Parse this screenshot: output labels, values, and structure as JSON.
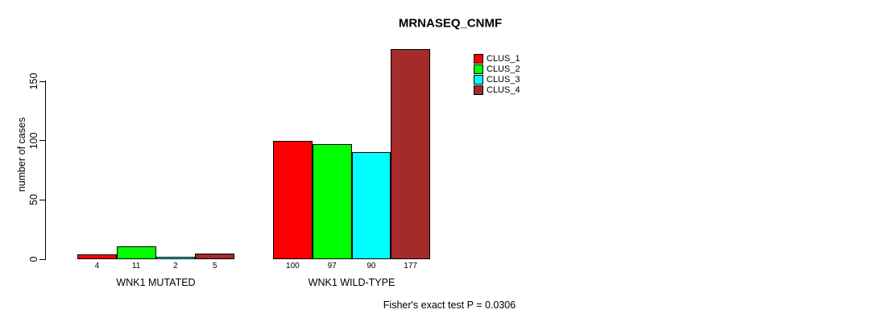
{
  "chart_data": {
    "type": "bar",
    "title": "MRNASEQ_CNMF",
    "ylabel": "number of cases",
    "xlabel": "",
    "annotation": "Fisher's exact test P = 0.0306",
    "categories": [
      "WNK1 MUTATED",
      "WNK1 WILD-TYPE"
    ],
    "series": [
      {
        "name": "CLUS_1",
        "color": "#ff0000",
        "values": [
          4,
          100
        ]
      },
      {
        "name": "CLUS_2",
        "color": "#00ff00",
        "values": [
          11,
          97
        ]
      },
      {
        "name": "CLUS_3",
        "color": "#00ffff",
        "values": [
          2,
          90
        ]
      },
      {
        "name": "CLUS_4",
        "color": "#a52a2a",
        "values": [
          5,
          177
        ]
      }
    ],
    "bar_value_labels": [
      [
        "4",
        "11",
        "2",
        "5"
      ],
      [
        "100",
        "97",
        "90",
        "177"
      ]
    ],
    "yticks": [
      0,
      50,
      100,
      150
    ],
    "ylim": [
      0,
      183
    ],
    "grid": false,
    "legend_position": "top-right",
    "background": "#ffffff",
    "bar_border_color": "#000000"
  }
}
